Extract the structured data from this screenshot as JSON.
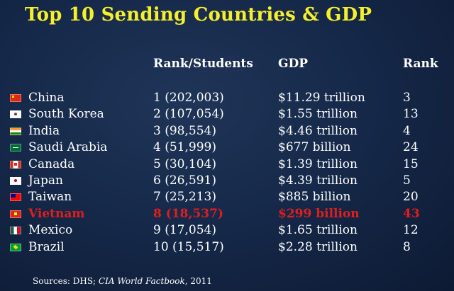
{
  "title": "Top 10 Sending Countries & GDP",
  "headers": {
    "rank_students": "Rank/Students",
    "gdp": "GDP",
    "rank": "Rank"
  },
  "rows": [
    {
      "flag_icon": "china-flag-icon",
      "country": "China",
      "students": "1 (202,003)",
      "gdp": "$11.29 trillion",
      "rank": "3",
      "highlight": false
    },
    {
      "flag_icon": "south-korea-flag-icon",
      "country": "South Korea",
      "students": "2 (107,054)",
      "gdp": "$1.55 trillion",
      "rank": "13",
      "highlight": false
    },
    {
      "flag_icon": "india-flag-icon",
      "country": "India",
      "students": "3 (98,554)",
      "gdp": "$4.46 trillion",
      "rank": "4",
      "highlight": false
    },
    {
      "flag_icon": "saudi-arabia-flag-icon",
      "country": "Saudi Arabia",
      "students": "4 (51,999)",
      "gdp": "$677 billion",
      "rank": "24",
      "highlight": false
    },
    {
      "flag_icon": "canada-flag-icon",
      "country": "Canada",
      "students": "5 (30,104)",
      "gdp": "$1.39 trillion",
      "rank": "15",
      "highlight": false
    },
    {
      "flag_icon": "japan-flag-icon",
      "country": "Japan",
      "students": "6 (26,591)",
      "gdp": "$4.39 trillion",
      "rank": "5",
      "highlight": false
    },
    {
      "flag_icon": "taiwan-flag-icon",
      "country": "Taiwan",
      "students": "7 (25,213)",
      "gdp": "$885 billion",
      "rank": "20",
      "highlight": false
    },
    {
      "flag_icon": "vietnam-flag-icon",
      "country": "Vietnam",
      "students": "8 (18,537)",
      "gdp": "$299 billion",
      "rank": "43",
      "highlight": true
    },
    {
      "flag_icon": "mexico-flag-icon",
      "country": "Mexico",
      "students": "9 (17,054)",
      "gdp": "$1.65 trillion",
      "rank": "12",
      "highlight": false
    },
    {
      "flag_icon": "brazil-flag-icon",
      "country": "Brazil",
      "students": "10 (15,517)",
      "gdp": "$2.28 trillion",
      "rank": "8",
      "highlight": false
    }
  ],
  "sources": {
    "prefix": "Sources:  DHS; ",
    "publication": "CIA World Factbook",
    "suffix": ", 2011"
  },
  "colors": {
    "title": "#f6ef2b",
    "text": "#ffffff",
    "highlight": "#e21d1d",
    "background": "#16294a"
  }
}
